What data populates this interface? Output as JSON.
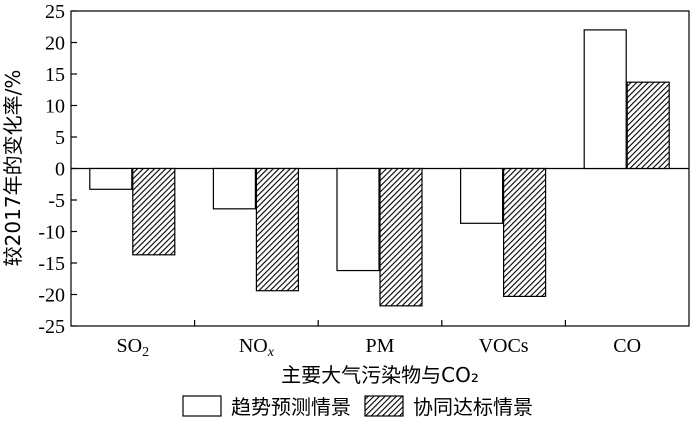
{
  "chart_data": {
    "type": "bar",
    "title": "",
    "xlabel": "主要大气污染物与CO₂",
    "ylabel": "较2017年的变化率/%",
    "ylim": [
      -25,
      25
    ],
    "yticks": [
      -25,
      -20,
      -15,
      -10,
      -5,
      0,
      5,
      10,
      15,
      20,
      25
    ],
    "grid": false,
    "legend_position": "bottom",
    "categories": [
      {
        "base": "SO",
        "sub": "2",
        "italic": false
      },
      {
        "base": "NO",
        "sub": "x",
        "italic": true
      },
      {
        "base": "PM",
        "sub": "",
        "italic": false
      },
      {
        "base": "VOCs",
        "sub": "",
        "italic": false
      },
      {
        "base": "CO",
        "sub": "",
        "italic": false
      }
    ],
    "series": [
      {
        "name": "趋势预测情景",
        "values": [
          -3.3,
          -6.4,
          -16.2,
          -8.7,
          22.0
        ],
        "fill": "#ffffff"
      },
      {
        "name": "协同达标情景",
        "values": [
          -13.7,
          -19.4,
          -21.8,
          -20.3,
          13.7
        ],
        "fill": "hatch"
      }
    ]
  }
}
